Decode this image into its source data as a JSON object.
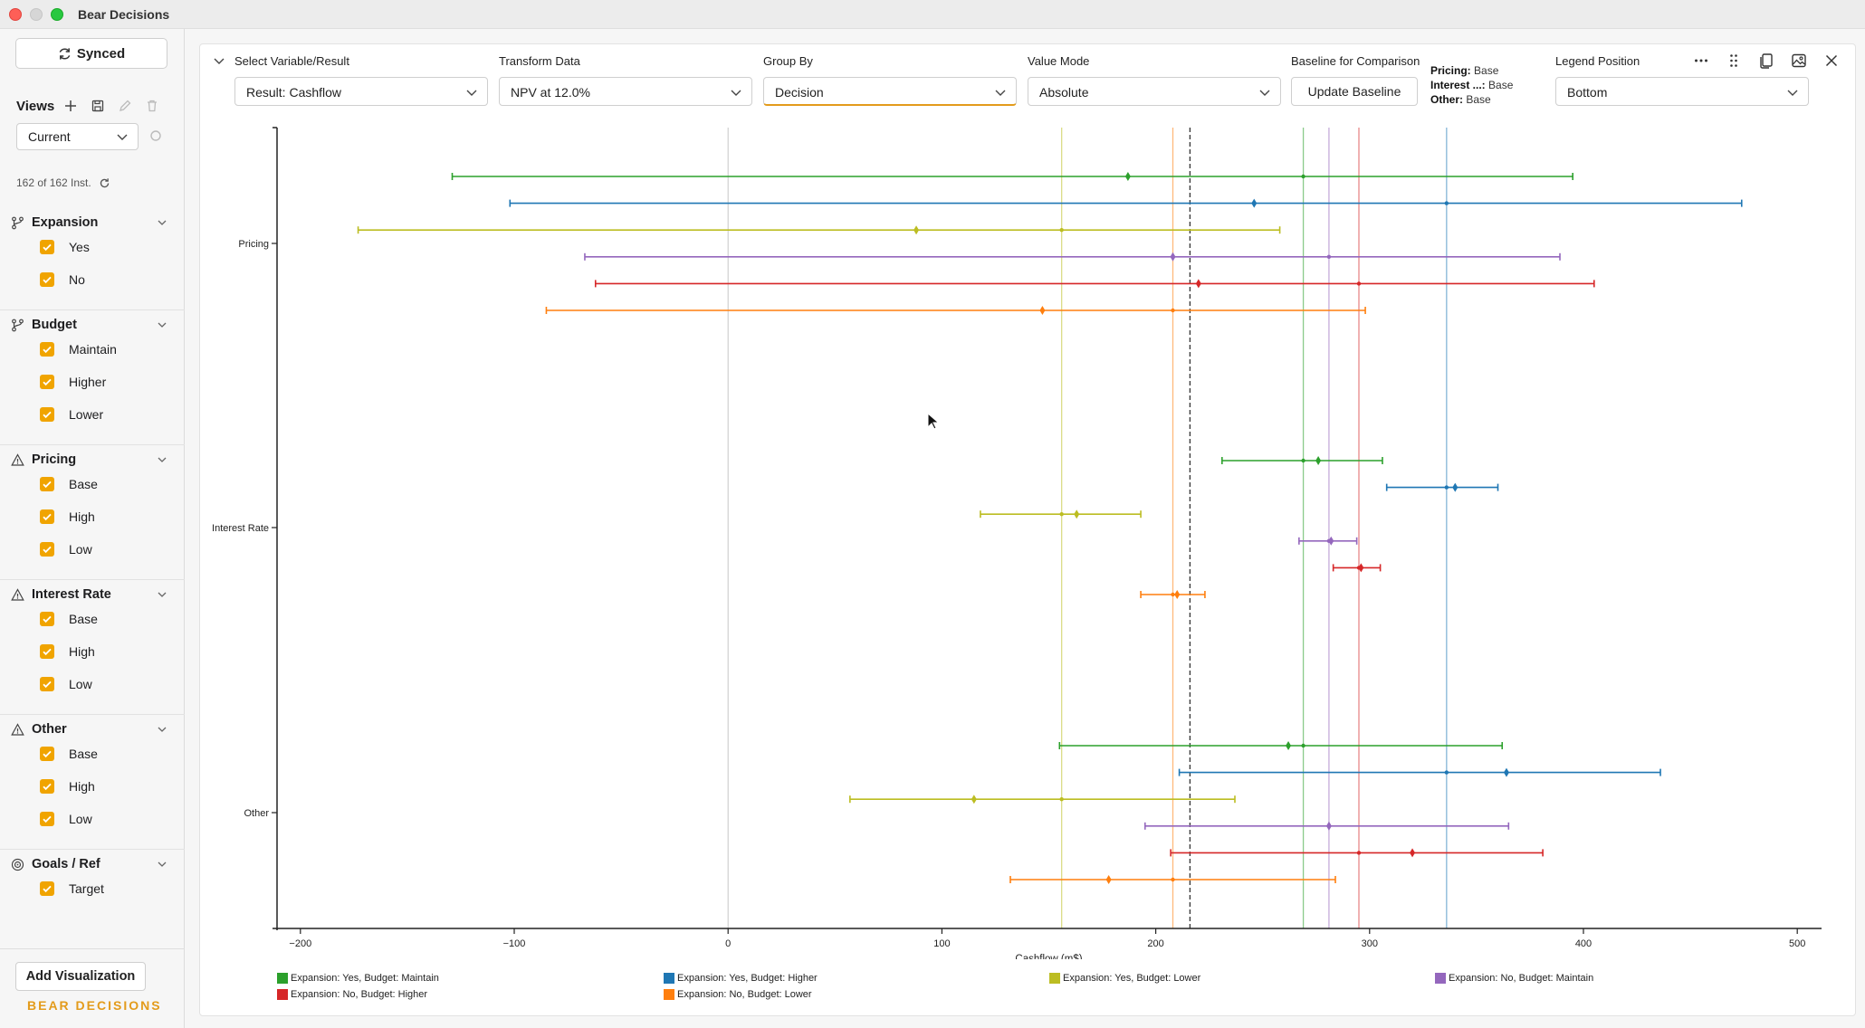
{
  "window": {
    "title": "Bear Decisions"
  },
  "sidebar": {
    "sync_label": "Synced",
    "views_label": "Views",
    "views_selected": "Current",
    "instances": "162 of 162 Inst.",
    "groups": [
      {
        "title": "Expansion",
        "icon": "branch-icon",
        "options": [
          "Yes",
          "No"
        ]
      },
      {
        "title": "Budget",
        "icon": "branch-icon",
        "options": [
          "Maintain",
          "Higher",
          "Lower"
        ]
      },
      {
        "title": "Pricing",
        "icon": "warning-icon",
        "options": [
          "Base",
          "High",
          "Low"
        ]
      },
      {
        "title": "Interest Rate",
        "icon": "warning-icon",
        "options": [
          "Base",
          "High",
          "Low"
        ]
      },
      {
        "title": "Other",
        "icon": "warning-icon",
        "options": [
          "Base",
          "High",
          "Low"
        ]
      },
      {
        "title": "Goals / Ref",
        "icon": "target-icon",
        "options": [
          "Target"
        ]
      }
    ],
    "add_visualization": "Add Visualization",
    "brand": "BEAR DECISIONS"
  },
  "controls": {
    "variable": {
      "label": "Select Variable/Result",
      "value": "Result: Cashflow"
    },
    "transform": {
      "label": "Transform Data",
      "value": "NPV at 12.0%"
    },
    "group_by": {
      "label": "Group By",
      "value": "Decision"
    },
    "value_mode": {
      "label": "Value Mode",
      "value": "Absolute"
    },
    "baseline": {
      "label": "Baseline for Comparison",
      "button": "Update Baseline"
    },
    "baseline_info": [
      {
        "key": "Pricing:",
        "value": "Base"
      },
      {
        "key": "Interest ...:",
        "value": "Base"
      },
      {
        "key": "Other:",
        "value": "Base"
      }
    ],
    "legend_position": {
      "label": "Legend Position",
      "value": "Bottom"
    }
  },
  "accent": "#e39b1b",
  "chart_data": {
    "type": "tornado-range",
    "xlabel": "Cashflow (m$)",
    "xlim": [
      -205,
      505
    ],
    "xticks": [
      -200,
      -100,
      0,
      100,
      200,
      300,
      400,
      500
    ],
    "xtick_labels": [
      "−200",
      "−100",
      "0",
      "100",
      "200",
      "300",
      "400",
      "500"
    ],
    "categories": [
      "Pricing",
      "Interest Rate",
      "Other"
    ],
    "target_line": 216,
    "series": [
      {
        "name": "Expansion: Yes, Budget: Maintain",
        "color": "#2ca02c",
        "baseline": 269,
        "ranges": [
          [
            -129,
            395,
            187
          ],
          [
            231,
            306,
            276
          ],
          [
            155,
            362,
            262
          ]
        ]
      },
      {
        "name": "Expansion: Yes, Budget: Higher",
        "color": "#1f77b4",
        "baseline": 336,
        "ranges": [
          [
            -102,
            474,
            246
          ],
          [
            308,
            360,
            340
          ],
          [
            211,
            436,
            364
          ]
        ]
      },
      {
        "name": "Expansion: Yes, Budget: Lower",
        "color": "#bcbd22",
        "baseline": 156,
        "ranges": [
          [
            -173,
            258,
            88
          ],
          [
            118,
            193,
            163
          ],
          [
            57,
            237,
            115
          ]
        ]
      },
      {
        "name": "Expansion: No, Budget: Maintain",
        "color": "#9467bd",
        "baseline": 281,
        "ranges": [
          [
            -67,
            389,
            208
          ],
          [
            267,
            294,
            282
          ],
          [
            195,
            365,
            281
          ]
        ]
      },
      {
        "name": "Expansion: No, Budget: Higher",
        "color": "#d62728",
        "baseline": 295,
        "ranges": [
          [
            -62,
            405,
            220
          ],
          [
            283,
            305,
            296
          ],
          [
            207,
            381,
            320
          ]
        ]
      },
      {
        "name": "Expansion: No, Budget: Lower",
        "color": "#ff7f0e",
        "baseline": 208,
        "ranges": [
          [
            -85,
            298,
            147
          ],
          [
            193,
            223,
            210
          ],
          [
            132,
            284,
            178
          ]
        ]
      }
    ]
  }
}
